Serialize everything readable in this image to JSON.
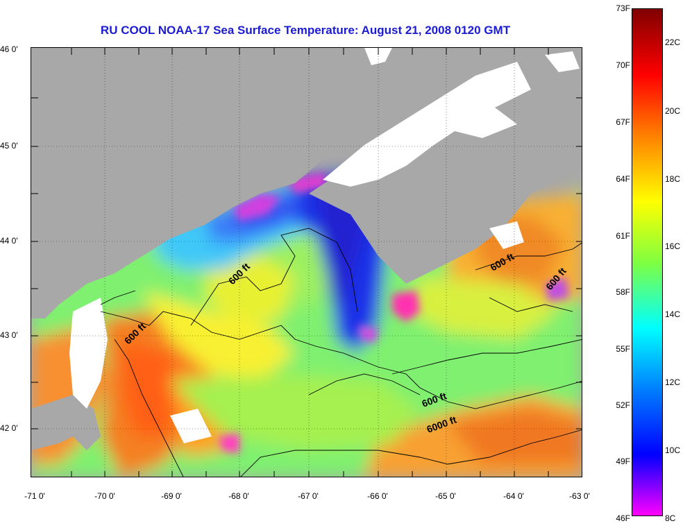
{
  "title": "RU COOL  NOAA-17  Sea Surface Temperature:  August 21, 2008 0120 GMT",
  "lat_ticks": [
    "46 0'",
    "45 0'",
    "44 0'",
    "43 0'",
    "42 0'"
  ],
  "lon_ticks": [
    "-71 0'",
    "-70 0'",
    "-69 0'",
    "-68 0'",
    "-67 0'",
    "-66 0'",
    "-65 0'",
    "-64 0'",
    "-63 0'"
  ],
  "colorbar": {
    "fahrenheit": [
      "73F",
      "70F",
      "67F",
      "64F",
      "61F",
      "58F",
      "55F",
      "52F",
      "49F",
      "46F"
    ],
    "celsius": [
      "22C",
      "20C",
      "18C",
      "16C",
      "14C",
      "12C",
      "10C",
      "8C"
    ],
    "colors": [
      "#800000",
      "#ff0000",
      "#ff8000",
      "#ffff00",
      "#80ff40",
      "#00ffff",
      "#0080ff",
      "#0000ff",
      "#ff00ff"
    ]
  },
  "contour_labels": [
    "600 ft",
    "600 ft",
    "600 ft",
    "600 ft",
    "600 ft",
    "6000 ft"
  ],
  "colors": {
    "land": "#a8a8a8",
    "cloud": "#ffffff",
    "title": "#1b1bd1",
    "bathymetry": "#000000"
  }
}
